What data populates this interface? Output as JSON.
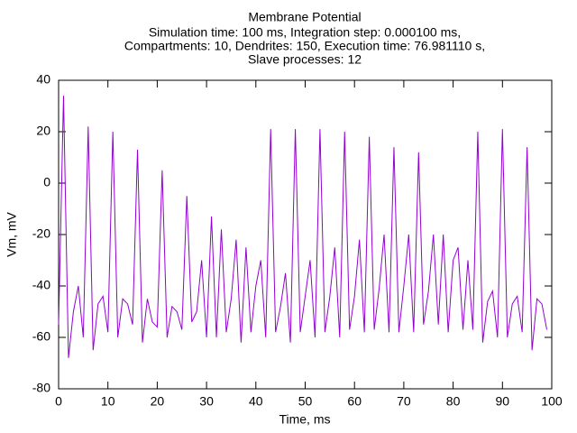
{
  "chart_data": {
    "type": "line",
    "title": "Membrane Potential",
    "subtitle": [
      "Simulation time: 100 ms, Integration step: 0.000100 ms,",
      "Compartments: 10, Dendrites: 150, Execution time: 76.981110 s,",
      "Slave processes: 12"
    ],
    "xlabel": "Time, ms",
    "ylabel": "Vm, mV",
    "xlim": [
      0,
      100
    ],
    "ylim": [
      -80,
      40
    ],
    "xticks": [
      0,
      10,
      20,
      30,
      40,
      50,
      60,
      70,
      80,
      90,
      100
    ],
    "yticks": [
      -80,
      -60,
      -40,
      -20,
      0,
      20,
      40
    ],
    "grid": false,
    "x": [
      0,
      1,
      2,
      3,
      4,
      5,
      6,
      7,
      8,
      9,
      10,
      11,
      12,
      13,
      14,
      15,
      16,
      17,
      18,
      19,
      20,
      21,
      22,
      23,
      24,
      25,
      26,
      27,
      28,
      29,
      30,
      31,
      32,
      33,
      34,
      35,
      36,
      37,
      38,
      39,
      40,
      41,
      42,
      43,
      44,
      45,
      46,
      47,
      48,
      49,
      50,
      51,
      52,
      53,
      54,
      55,
      56,
      57,
      58,
      59,
      60,
      61,
      62,
      63,
      64,
      65,
      66,
      67,
      68,
      69,
      70,
      71,
      72,
      73,
      74,
      75,
      76,
      77,
      78,
      79,
      80,
      81,
      82,
      83,
      84,
      85,
      86,
      87,
      88,
      89,
      90,
      91,
      92,
      93,
      94,
      95,
      96,
      97,
      98,
      99
    ],
    "series": [
      {
        "color": "#9400d3",
        "values": [
          -55,
          34,
          -68,
          -50,
          -40,
          -60,
          22,
          -65,
          -47,
          -44,
          -58,
          20,
          -60,
          -45,
          -47,
          -55,
          13,
          -62,
          -45,
          -54,
          -56,
          5,
          -60,
          -48,
          -50,
          -57,
          -5,
          -54,
          -50,
          -30,
          -60,
          -13,
          -60,
          -18,
          -58,
          -45,
          -22,
          -62,
          -25,
          -58,
          -40,
          -30,
          -60,
          21,
          -58,
          -48,
          -35,
          -62,
          21,
          -58,
          -44,
          -30,
          -60,
          21,
          -58,
          -44,
          -25,
          -60,
          20,
          -57,
          -44,
          -22,
          -58,
          18,
          -57,
          -41,
          -20,
          -58,
          14,
          -58,
          -40,
          -20,
          -58,
          12,
          -55,
          -42,
          -20,
          -55,
          -20,
          -58,
          -30,
          -25,
          -57,
          -30,
          -57,
          20,
          -62,
          -46,
          -42,
          -60,
          21,
          -60,
          -47,
          -44,
          -58,
          14,
          -65,
          -45,
          -47,
          -57
        ]
      }
    ]
  }
}
